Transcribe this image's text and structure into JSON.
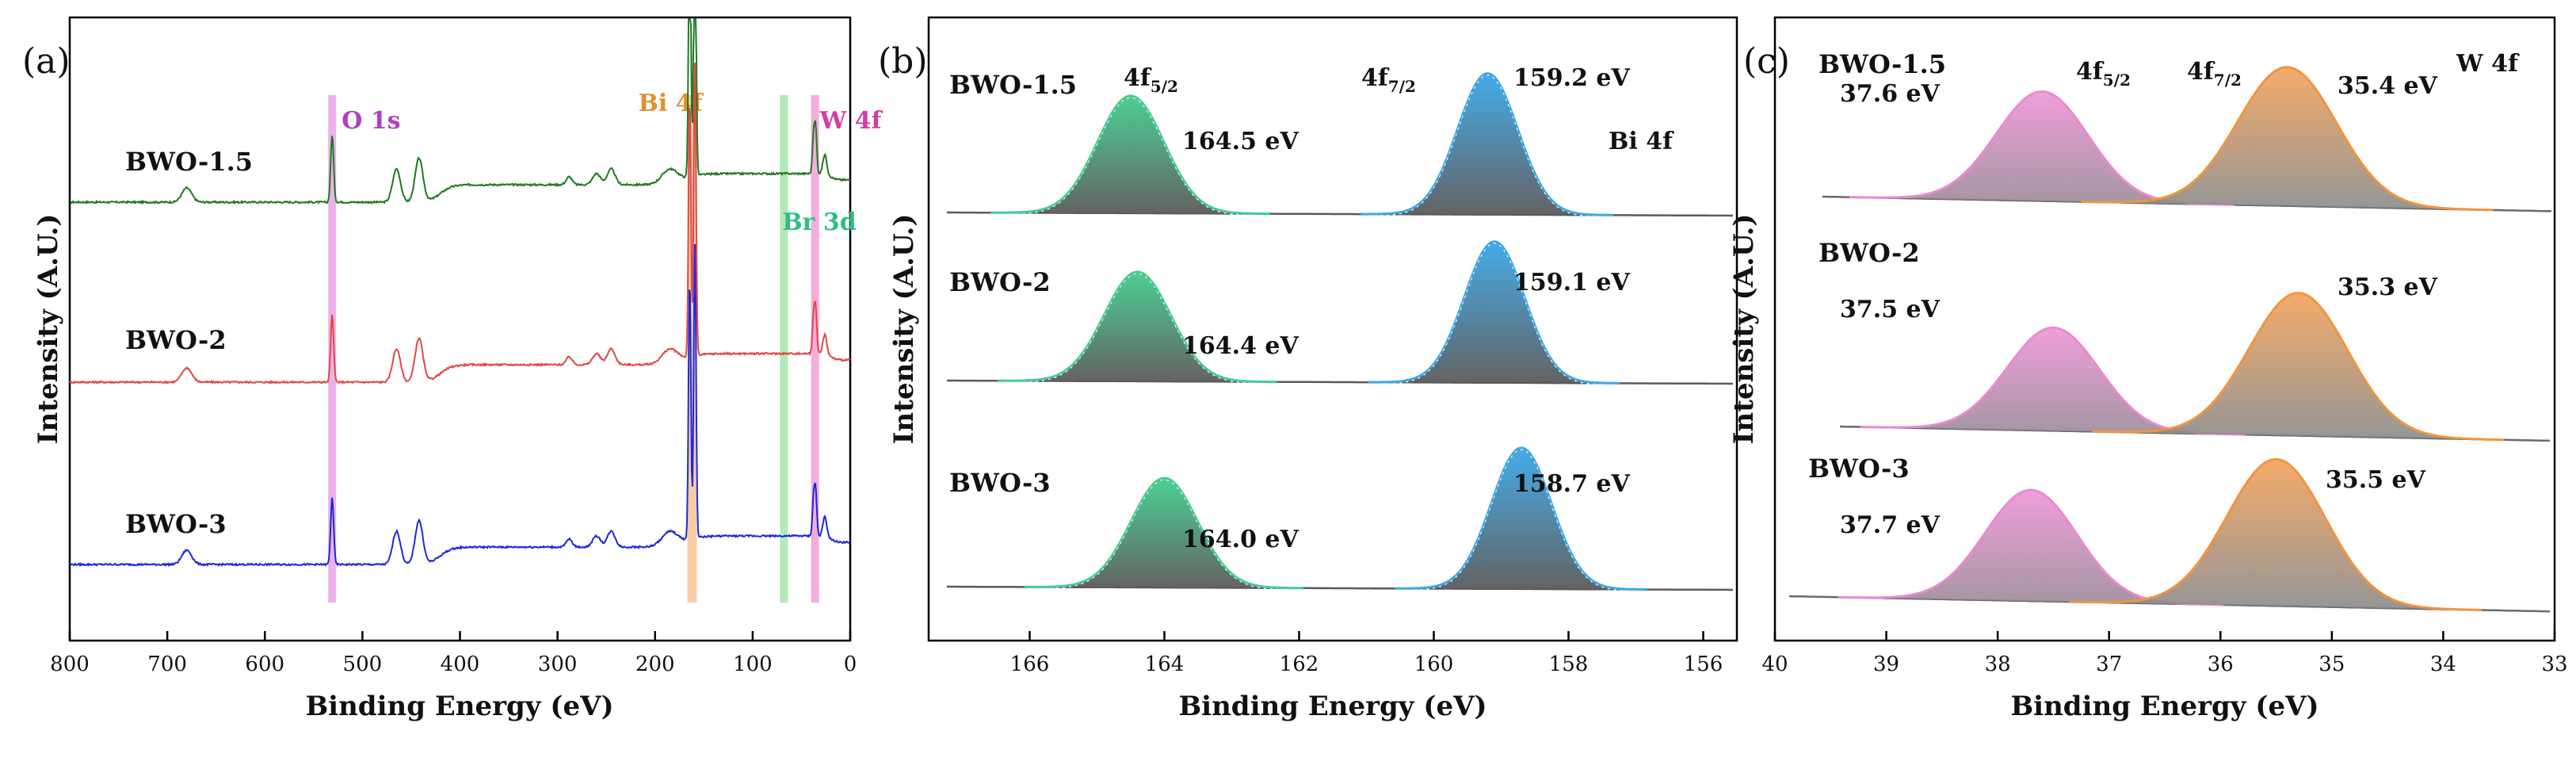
{
  "chart_data": [
    {
      "type": "line",
      "panel_label": "(a)",
      "xlabel": "Binding Energy (eV)",
      "ylabel": "Intensity (A.U.)",
      "xlim": [
        800,
        0
      ],
      "xticks": [
        "800",
        "700",
        "600",
        "500",
        "400",
        "300",
        "200",
        "100",
        "0"
      ],
      "bands": [
        {
          "label": "O 1s",
          "x": 531,
          "color": "#e9a8e8",
          "label_color": "#b040c0"
        },
        {
          "label": "Bi 4f",
          "x": 162,
          "color": "#f7c89c",
          "label_color": "#e0902c"
        },
        {
          "label": "Br 3d",
          "x": 68,
          "color": "#a8e8b4",
          "label_color": "#2fbf7f"
        },
        {
          "label": "W 4f",
          "x": 36,
          "color": "#f3a3d8",
          "label_color": "#d63ca6"
        }
      ],
      "series": [
        {
          "name": "BWO-1.5",
          "color": "#1f7a1f"
        },
        {
          "name": "BWO-2",
          "color": "#e04848"
        },
        {
          "name": "BWO-3",
          "color": "#1e2ad8"
        }
      ],
      "peaks": [
        {
          "x": 680,
          "h": 0.18,
          "w": 5
        },
        {
          "x": 531,
          "h": 0.85,
          "w": 1.5
        },
        {
          "x": 465,
          "h": 0.42,
          "w": 4
        },
        {
          "x": 442,
          "h": 0.55,
          "w": 4
        },
        {
          "x": 288,
          "h": 0.1,
          "w": 3
        },
        {
          "x": 260,
          "h": 0.14,
          "w": 4
        },
        {
          "x": 245,
          "h": 0.2,
          "w": 4
        },
        {
          "x": 185,
          "h": 0.18,
          "w": 8
        },
        {
          "x": 164.5,
          "h": 3.3,
          "w": 1.2
        },
        {
          "x": 159.2,
          "h": 3.7,
          "w": 1.2
        },
        {
          "x": 37.6,
          "h": 0.45,
          "w": 1.2
        },
        {
          "x": 35.4,
          "h": 0.55,
          "w": 1.2
        },
        {
          "x": 26,
          "h": 0.25,
          "w": 2
        }
      ]
    },
    {
      "type": "area",
      "panel_label": "(b)",
      "xlabel": "Binding Energy (eV)",
      "ylabel": "Intensity (A.U.)",
      "xlim": [
        167.5,
        155.5
      ],
      "xticks": [
        "166",
        "164",
        "162",
        "160",
        "158",
        "156"
      ],
      "element_label": "Bi 4f",
      "orbital_labels": [
        {
          "main": "4f",
          "sub": "5/2"
        },
        {
          "main": "4f",
          "sub": "7/2"
        }
      ],
      "series": [
        {
          "name": "BWO-1.5",
          "peaks": [
            {
              "center": 164.5,
              "label": "164.5 eV"
            },
            {
              "center": 159.2,
              "label": "159.2 eV"
            }
          ]
        },
        {
          "name": "BWO-2",
          "peaks": [
            {
              "center": 164.4,
              "label": "164.4 eV"
            },
            {
              "center": 159.1,
              "label": "159.1 eV"
            }
          ]
        },
        {
          "name": "BWO-3",
          "peaks": [
            {
              "center": 164.0,
              "label": "164.0 eV"
            },
            {
              "center": 158.7,
              "label": "158.7 eV"
            }
          ]
        }
      ],
      "colors": {
        "peak1_top": "#43cc8e",
        "peak2_top": "#3ba7e6",
        "base": "#5b5b5b"
      }
    },
    {
      "type": "area",
      "panel_label": "(c)",
      "xlabel": "Binding Energy (eV)",
      "ylabel": "Intensity (A.U.)",
      "xlim": [
        40,
        33
      ],
      "xticks": [
        "40",
        "39",
        "38",
        "37",
        "36",
        "35",
        "34",
        "33"
      ],
      "element_label": "W 4f",
      "orbital_labels": [
        {
          "main": "4f",
          "sub": "5/2"
        },
        {
          "main": "4f",
          "sub": "7/2"
        }
      ],
      "series": [
        {
          "name": "BWO-1.5",
          "peaks": [
            {
              "center": 37.6,
              "label": "37.6 eV"
            },
            {
              "center": 35.4,
              "label": "35.4 eV"
            }
          ]
        },
        {
          "name": "BWO-2",
          "peaks": [
            {
              "center": 37.5,
              "label": "37.5 eV"
            },
            {
              "center": 35.3,
              "label": "35.3 eV"
            }
          ]
        },
        {
          "name": "BWO-3",
          "peaks": [
            {
              "center": 37.7,
              "label": "37.7 eV"
            },
            {
              "center": 35.5,
              "label": "35.5 eV"
            }
          ]
        }
      ],
      "colors": {
        "peak1_top": "#e98bd0",
        "peak2_top": "#f0953e",
        "base": "#6a6a6a"
      }
    }
  ]
}
